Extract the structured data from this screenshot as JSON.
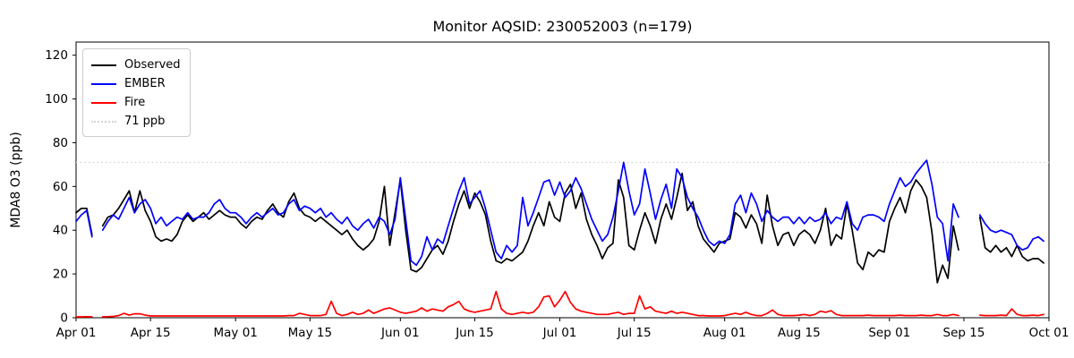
{
  "figure": {
    "background": "#ffffff"
  },
  "chart_data": {
    "type": "line",
    "title": "Monitor AQSID: 230052003 (n=179)",
    "ylabel": "MDA8 O3 (ppb)",
    "xlabel": "",
    "grid": false,
    "legend_position": "upper-left",
    "x_unit": "days from Apr 01",
    "x_range": [
      0,
      183
    ],
    "ylim": [
      0,
      126
    ],
    "yticks": [
      0,
      20,
      40,
      60,
      80,
      100,
      120
    ],
    "xticks": {
      "positions": [
        0,
        14,
        30,
        44,
        61,
        75,
        91,
        105,
        122,
        136,
        153,
        167,
        183
      ],
      "labels": [
        "Apr 01",
        "Apr 15",
        "May 01",
        "May 15",
        "Jun 01",
        "Jun 15",
        "Jul 01",
        "Jul 15",
        "Aug 01",
        "Aug 15",
        "Sep 01",
        "Sep 15",
        "Oct 01"
      ]
    },
    "threshold": {
      "label": "71 ppb",
      "value": 71,
      "color": "#d2d2d2",
      "style": "dotted"
    },
    "legend": {
      "items": [
        {
          "label": "Observed",
          "color": "#000000",
          "style": "solid"
        },
        {
          "label": "EMBER",
          "color": "#0000ff",
          "style": "solid"
        },
        {
          "label": "Fire",
          "color": "#ff0000",
          "style": "solid"
        },
        {
          "label": "71 ppb",
          "color": "#d2d2d2",
          "style": "dotted"
        }
      ]
    },
    "series": [
      {
        "name": "Observed",
        "color": "#000000",
        "style": "solid",
        "values": [
          48,
          50,
          50,
          38,
          null,
          42,
          46,
          47,
          50,
          54,
          58,
          48,
          58,
          49,
          44,
          37,
          35,
          36,
          35,
          38,
          44,
          47,
          44,
          46,
          48,
          45,
          47,
          49,
          47,
          46,
          46,
          43,
          41,
          44,
          46,
          45,
          49,
          52,
          48,
          46,
          53,
          57,
          50,
          47,
          46,
          44,
          46,
          44,
          42,
          40,
          38,
          40,
          36,
          33,
          31,
          33,
          36,
          44,
          60,
          33,
          48,
          63,
          40,
          22,
          21,
          23,
          27,
          31,
          33,
          29,
          35,
          44,
          52,
          58,
          50,
          57,
          53,
          47,
          35,
          26,
          25,
          27,
          26,
          28,
          30,
          35,
          42,
          48,
          42,
          53,
          46,
          44,
          57,
          61,
          50,
          57,
          45,
          38,
          33,
          27,
          32,
          34,
          63,
          55,
          33,
          31,
          40,
          48,
          42,
          34,
          45,
          52,
          45,
          55,
          66,
          49,
          53,
          42,
          36,
          33,
          30,
          34,
          35,
          36,
          48,
          46,
          41,
          47,
          43,
          34,
          56,
          42,
          33,
          38,
          39,
          33,
          38,
          40,
          38,
          34,
          40,
          50,
          33,
          38,
          36,
          52,
          40,
          25,
          22,
          30,
          28,
          31,
          30,
          44,
          50,
          55,
          48,
          58,
          63,
          60,
          55,
          39,
          16,
          24,
          18,
          42,
          31,
          null,
          null,
          null,
          46,
          32,
          30,
          33,
          30,
          32,
          28,
          33,
          28,
          26,
          27,
          27,
          25
        ]
      },
      {
        "name": "EMBER",
        "color": "#0000ff",
        "style": "solid",
        "values": [
          44,
          47,
          49,
          37,
          null,
          40,
          44,
          47,
          45,
          50,
          55,
          48,
          52,
          54,
          50,
          43,
          46,
          42,
          44,
          46,
          45,
          48,
          45,
          46,
          46,
          48,
          52,
          54,
          50,
          48,
          48,
          46,
          43,
          46,
          48,
          46,
          48,
          50,
          47,
          48,
          52,
          54,
          49,
          51,
          50,
          48,
          50,
          46,
          48,
          45,
          43,
          46,
          42,
          40,
          43,
          45,
          41,
          46,
          44,
          38,
          45,
          64,
          45,
          26,
          24,
          28,
          37,
          31,
          36,
          34,
          42,
          50,
          58,
          64,
          52,
          55,
          58,
          50,
          40,
          30,
          27,
          33,
          30,
          33,
          55,
          42,
          48,
          55,
          62,
          63,
          56,
          62,
          55,
          58,
          64,
          59,
          52,
          45,
          40,
          35,
          38,
          46,
          58,
          71,
          58,
          47,
          52,
          68,
          57,
          45,
          54,
          61,
          50,
          68,
          64,
          55,
          50,
          46,
          40,
          35,
          33,
          35,
          34,
          38,
          52,
          56,
          48,
          57,
          52,
          44,
          49,
          46,
          44,
          46,
          46,
          43,
          46,
          43,
          46,
          44,
          45,
          48,
          43,
          46,
          45,
          53,
          43,
          40,
          46,
          47,
          47,
          46,
          44,
          52,
          58,
          64,
          60,
          62,
          66,
          69,
          72,
          61,
          46,
          43,
          26,
          52,
          46,
          null,
          null,
          null,
          47,
          43,
          40,
          39,
          40,
          39,
          38,
          33,
          31,
          32,
          36,
          37,
          35
        ]
      },
      {
        "name": "Fire",
        "color": "#ff0000",
        "style": "solid",
        "values": [
          0.4,
          0.4,
          0.5,
          0.4,
          null,
          0.4,
          0.5,
          0.6,
          1,
          2,
          1.2,
          1.8,
          1.8,
          1.2,
          0.8,
          0.8,
          0.8,
          0.8,
          0.8,
          0.8,
          0.8,
          0.8,
          0.8,
          0.8,
          0.8,
          0.8,
          0.8,
          0.8,
          0.8,
          0.8,
          0.8,
          0.8,
          0.8,
          0.8,
          0.8,
          0.8,
          0.8,
          0.8,
          0.8,
          0.8,
          1,
          1,
          2,
          1.5,
          1,
          1,
          1,
          1.5,
          7.5,
          2,
          1,
          1.5,
          2.5,
          1.5,
          2,
          3.5,
          2,
          3,
          4,
          4.5,
          3.5,
          2.5,
          2,
          2.5,
          3,
          4.5,
          3,
          4,
          3.5,
          3,
          5,
          6,
          7.5,
          4,
          3,
          2.5,
          3,
          3.5,
          4,
          12,
          4,
          2,
          1.5,
          2,
          2.5,
          2,
          2.5,
          5,
          9.5,
          10,
          5,
          8,
          12,
          7,
          4,
          3,
          2.5,
          2,
          1.5,
          1.5,
          1.5,
          2,
          2.5,
          1.5,
          2,
          2,
          10,
          4,
          5,
          3,
          2.5,
          2,
          3,
          2,
          2.5,
          2,
          1.5,
          1,
          1,
          0.8,
          0.8,
          0.8,
          1,
          1.5,
          2,
          1.5,
          2.5,
          1.5,
          1,
          1,
          2,
          3.5,
          1.5,
          1,
          1,
          1,
          1.2,
          1.5,
          1,
          1.5,
          3,
          2.5,
          3.2,
          1.5,
          1,
          1,
          1,
          1,
          1,
          1.2,
          1,
          1,
          1,
          1,
          1,
          1.2,
          1,
          1,
          1,
          1.2,
          1,
          1,
          1.5,
          1,
          1,
          1.5,
          1,
          null,
          null,
          null,
          1.2,
          1,
          1,
          1,
          1.2,
          1,
          4,
          1.5,
          1,
          1,
          1.2,
          1,
          1.5
        ]
      }
    ]
  }
}
